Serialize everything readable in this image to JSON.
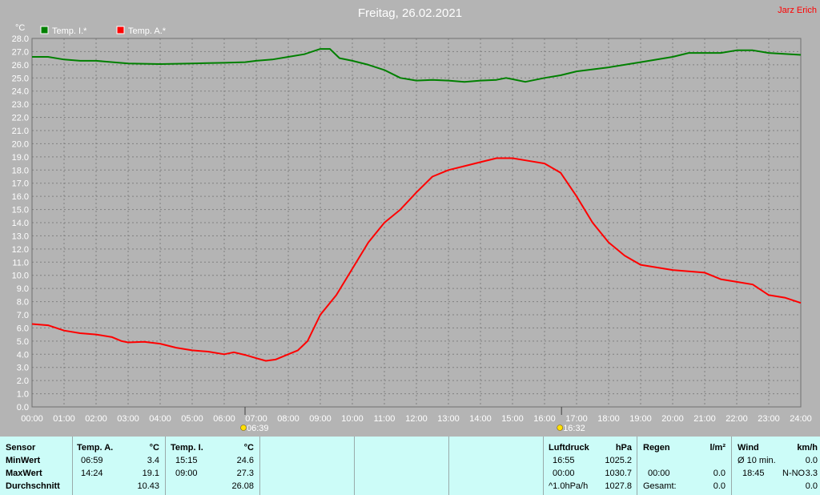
{
  "chart_data": {
    "type": "line",
    "title": "Freitag, 26.02.2021",
    "author": "Jarz Erich",
    "ylabel": "°C",
    "ylim": [
      0,
      28
    ],
    "y_tick_step": 1,
    "xlim": [
      0,
      24
    ],
    "x_ticks": [
      "00:00",
      "01:00",
      "02:00",
      "03:00",
      "04:00",
      "05:00",
      "06:00",
      "07:00",
      "08:00",
      "09:00",
      "10:00",
      "11:00",
      "12:00",
      "13:00",
      "14:00",
      "15:00",
      "16:00",
      "17:00",
      "18:00",
      "19:00",
      "20:00",
      "21:00",
      "22:00",
      "23:00",
      "24:00"
    ],
    "grid": true,
    "legend_position": "top-left",
    "events": [
      {
        "label": "06:39",
        "time": 6.65,
        "icon": "sunrise-icon"
      },
      {
        "label": "16:32",
        "time": 16.53,
        "icon": "sunset-icon"
      }
    ],
    "series": [
      {
        "name": "Temp. I.*",
        "color": "#008000",
        "points": [
          [
            0,
            26.6
          ],
          [
            0.5,
            26.6
          ],
          [
            1,
            26.4
          ],
          [
            1.5,
            26.3
          ],
          [
            2,
            26.3
          ],
          [
            3,
            26.1
          ],
          [
            4,
            26.05
          ],
          [
            5,
            26.1
          ],
          [
            6,
            26.15
          ],
          [
            6.65,
            26.2
          ],
          [
            7,
            26.3
          ],
          [
            7.5,
            26.4
          ],
          [
            8,
            26.6
          ],
          [
            8.5,
            26.8
          ],
          [
            9,
            27.2
          ],
          [
            9.3,
            27.2
          ],
          [
            9.6,
            26.5
          ],
          [
            10,
            26.3
          ],
          [
            10.5,
            26.0
          ],
          [
            11,
            25.6
          ],
          [
            11.5,
            25.0
          ],
          [
            12,
            24.8
          ],
          [
            12.5,
            24.85
          ],
          [
            13,
            24.8
          ],
          [
            13.5,
            24.7
          ],
          [
            14,
            24.8
          ],
          [
            14.5,
            24.85
          ],
          [
            14.8,
            25.0
          ],
          [
            15,
            24.9
          ],
          [
            15.4,
            24.7
          ],
          [
            16,
            25.0
          ],
          [
            16.5,
            25.2
          ],
          [
            17,
            25.5
          ],
          [
            18,
            25.8
          ],
          [
            19,
            26.2
          ],
          [
            20,
            26.6
          ],
          [
            20.5,
            26.9
          ],
          [
            21,
            26.9
          ],
          [
            21.5,
            26.9
          ],
          [
            22,
            27.1
          ],
          [
            22.5,
            27.1
          ],
          [
            23,
            26.9
          ],
          [
            24,
            26.75
          ]
        ]
      },
      {
        "name": "Temp. A.*",
        "color": "#ff0000",
        "points": [
          [
            0,
            6.3
          ],
          [
            0.5,
            6.2
          ],
          [
            1,
            5.8
          ],
          [
            1.5,
            5.6
          ],
          [
            2,
            5.5
          ],
          [
            2.5,
            5.3
          ],
          [
            2.8,
            5.0
          ],
          [
            3,
            4.9
          ],
          [
            3.5,
            4.95
          ],
          [
            4,
            4.8
          ],
          [
            4.5,
            4.5
          ],
          [
            5,
            4.3
          ],
          [
            5.5,
            4.2
          ],
          [
            6,
            4.0
          ],
          [
            6.3,
            4.15
          ],
          [
            6.65,
            3.95
          ],
          [
            7,
            3.7
          ],
          [
            7.3,
            3.5
          ],
          [
            7.6,
            3.6
          ],
          [
            8,
            4.0
          ],
          [
            8.3,
            4.3
          ],
          [
            8.6,
            5.0
          ],
          [
            9,
            7.0
          ],
          [
            9.5,
            8.5
          ],
          [
            10,
            10.5
          ],
          [
            10.5,
            12.5
          ],
          [
            11,
            14.0
          ],
          [
            11.5,
            15.0
          ],
          [
            12,
            16.3
          ],
          [
            12.5,
            17.5
          ],
          [
            13,
            18.0
          ],
          [
            13.5,
            18.3
          ],
          [
            14,
            18.6
          ],
          [
            14.5,
            18.9
          ],
          [
            15,
            18.9
          ],
          [
            15.5,
            18.7
          ],
          [
            16,
            18.5
          ],
          [
            16.5,
            17.8
          ],
          [
            17,
            16.0
          ],
          [
            17.5,
            14.0
          ],
          [
            18,
            12.5
          ],
          [
            18.5,
            11.5
          ],
          [
            19,
            10.8
          ],
          [
            19.5,
            10.6
          ],
          [
            20,
            10.4
          ],
          [
            20.5,
            10.3
          ],
          [
            21,
            10.2
          ],
          [
            21.5,
            9.7
          ],
          [
            22,
            9.5
          ],
          [
            22.5,
            9.3
          ],
          [
            23,
            8.5
          ],
          [
            23.5,
            8.3
          ],
          [
            24,
            7.9
          ]
        ]
      }
    ]
  },
  "stats": {
    "sensor": {
      "header": "Sensor",
      "min": "MinWert",
      "max": "MaxWert",
      "avg": "Durchschnitt"
    },
    "temp_a": {
      "header": "Temp. A.",
      "unit": "°C",
      "min_time": "06:59",
      "min": "3.4",
      "max_time": "14:24",
      "max": "19.1",
      "avg": "10.43"
    },
    "temp_i": {
      "header": "Temp. I.",
      "unit": "°C",
      "min_time": "15:15",
      "min": "24.6",
      "max_time": "09:00",
      "max": "27.3",
      "avg": "26.08"
    },
    "pressure": {
      "header": "Luftdruck",
      "unit": "hPa",
      "min_time": "16:55",
      "min": "1025.2",
      "max_time": "00:00",
      "max": "1030.7",
      "trend_label": "^1.0hPa/h",
      "trend_value": "1027.8"
    },
    "rain": {
      "header": "Regen",
      "unit": "l/m²",
      "time": "00:00",
      "value": "0.0",
      "total_label": "Gesamt:",
      "total": "0.0"
    },
    "wind": {
      "header": "Wind",
      "unit": "km/h",
      "avg_label": "Ø 10 min.",
      "avg": "0.0",
      "time": "18:45",
      "dir": "N-NO",
      "max": "3.3",
      "extra": "0.0"
    }
  }
}
